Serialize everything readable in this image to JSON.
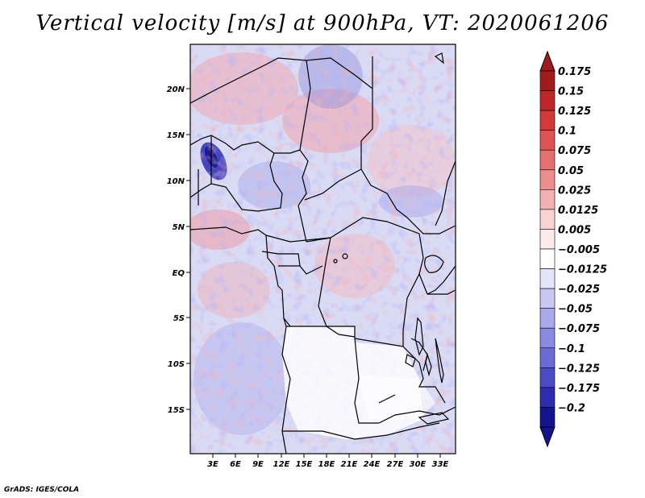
{
  "title": "Vertical velocity [m/s] at 900hPa, VT: 2020061206",
  "footer": "GrADS: IGES/COLA",
  "map": {
    "lat_labels": [
      "20N",
      "15N",
      "10N",
      "5N",
      "EQ",
      "5S",
      "10S",
      "15S"
    ],
    "lon_labels": [
      "3E",
      "6E",
      "9E",
      "12E",
      "15E",
      "18E",
      "21E",
      "24E",
      "27E",
      "30E",
      "33E"
    ],
    "field_description": "Noisy alternating positive (red) and negative (blue) vertical velocity over Central Africa; strong negative core near 2E 12N; weak/white values over Angola and Zambia"
  },
  "colorbar": {
    "labels": [
      "0.175",
      "0.15",
      "0.125",
      "0.1",
      "0.075",
      "0.05",
      "0.025",
      "0.0125",
      "0.005",
      "−0.005",
      "−0.0125",
      "−0.025",
      "−0.05",
      "−0.075",
      "−0.1",
      "−0.125",
      "−0.175",
      "−0.2"
    ],
    "colors": [
      "#a01c1c",
      "#be2727",
      "#d23a3a",
      "#de5353",
      "#e57070",
      "#ec8e8e",
      "#f3b1b1",
      "#f9d2d2",
      "#fdeaea",
      "#ffffff",
      "#e4e4fa",
      "#c8c8f4",
      "#a9a9ec",
      "#8a8ae3",
      "#6b6bd6",
      "#4b4bc6",
      "#2c2cb0",
      "#14148f"
    ]
  }
}
